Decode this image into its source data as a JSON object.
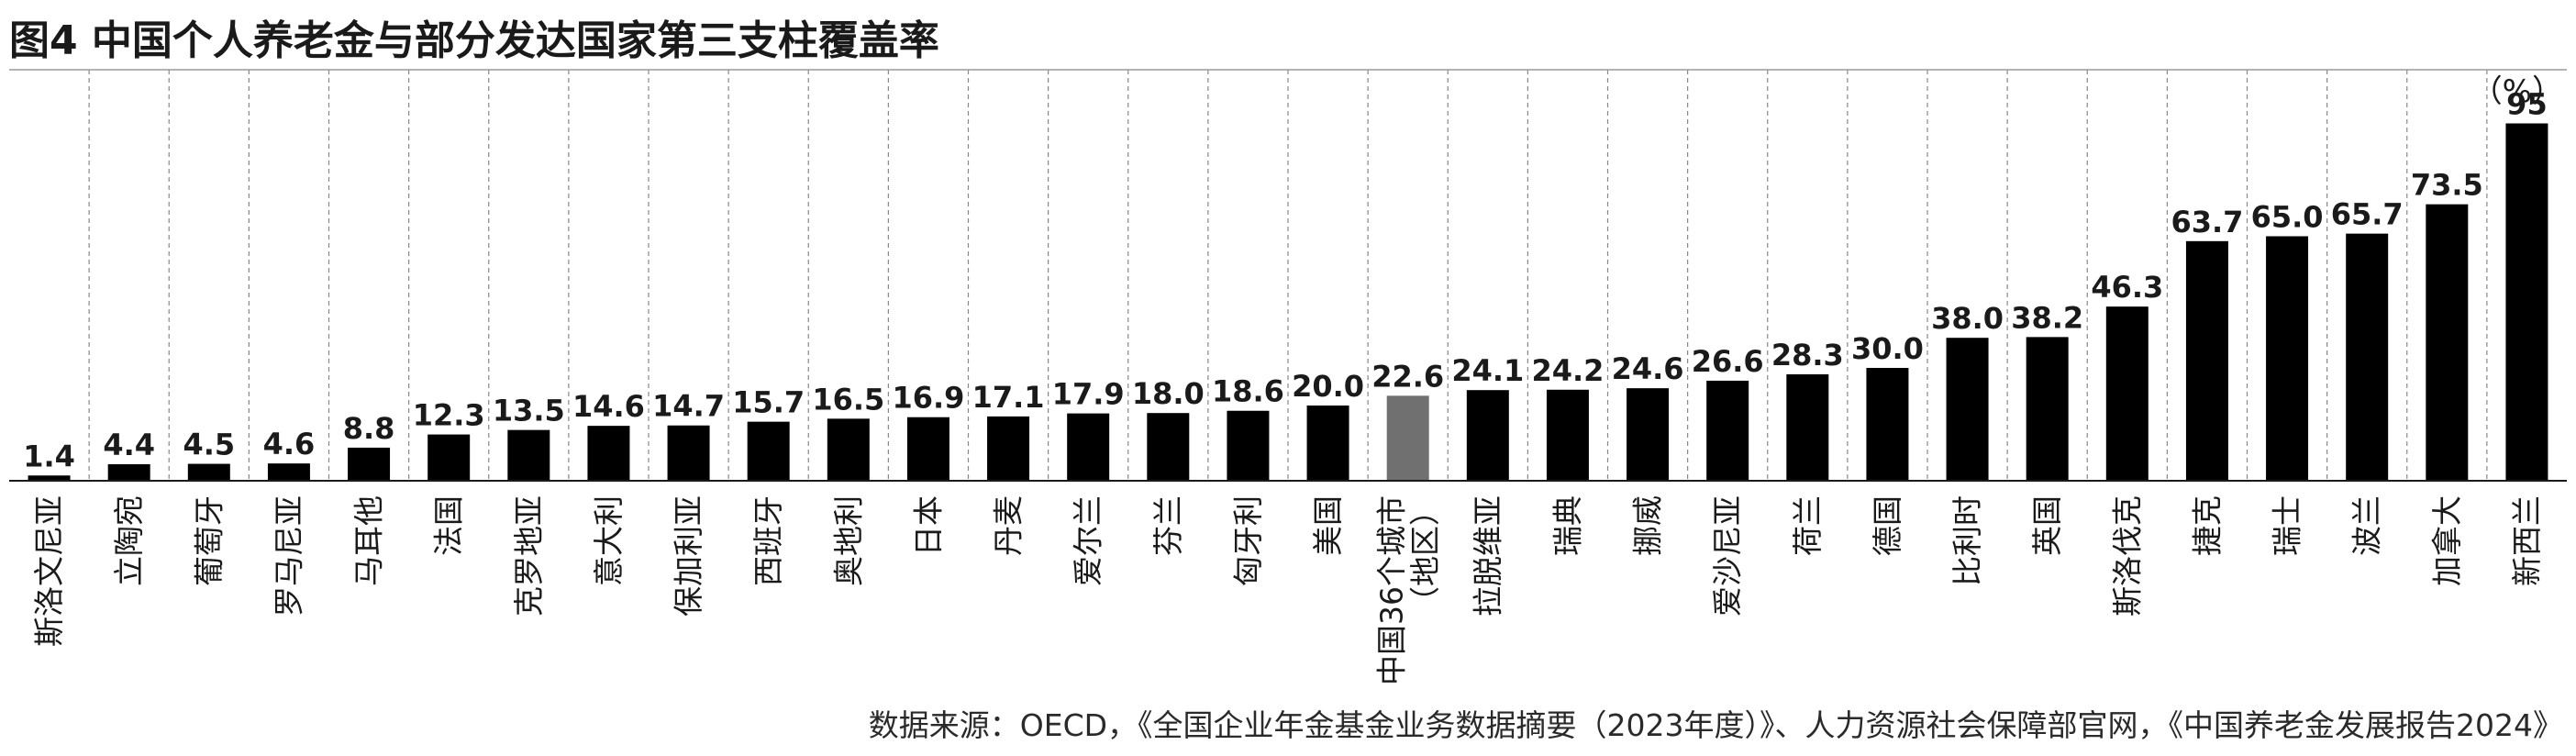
{
  "chart_data": {
    "type": "bar",
    "title": "图4 中国个人养老金与部分发达国家第三支柱覆盖率",
    "unit": "（%）",
    "categories": [
      "斯洛文尼亚",
      "立陶宛",
      "葡萄牙",
      "罗马尼亚",
      "马耳他",
      "法国",
      "克罗地亚",
      "意大利",
      "保加利亚",
      "西班牙",
      "奥地利",
      "日本",
      "丹麦",
      "爱尔兰",
      "芬兰",
      "匈牙利",
      "美国",
      "中国36个城市（地区）",
      "拉脱维亚",
      "瑞典",
      "挪威",
      "爱沙尼亚",
      "荷兰",
      "德国",
      "比利时",
      "英国",
      "斯洛伐克",
      "捷克",
      "瑞士",
      "波兰",
      "加拿大",
      "新西兰"
    ],
    "values": [
      1.4,
      4.4,
      4.5,
      4.6,
      8.8,
      12.3,
      13.5,
      14.6,
      14.7,
      15.7,
      16.5,
      16.9,
      17.1,
      17.9,
      18.0,
      18.6,
      20.0,
      22.6,
      24.1,
      24.2,
      24.6,
      26.6,
      28.3,
      30.0,
      38.0,
      38.2,
      46.3,
      63.7,
      65.0,
      65.7,
      73.5,
      95
    ],
    "value_labels": [
      "1.4",
      "4.4",
      "4.5",
      "4.6",
      "8.8",
      "12.3",
      "13.5",
      "14.6",
      "14.7",
      "15.7",
      "16.5",
      "16.9",
      "17.1",
      "17.9",
      "18.0",
      "18.6",
      "20.0",
      "22.6",
      "24.1",
      "24.2",
      "24.6",
      "26.6",
      "28.3",
      "30.0",
      "38.0",
      "38.2",
      "46.3",
      "63.7",
      "65.0",
      "65.7",
      "73.5",
      "95"
    ],
    "highlight_index": 17,
    "colors": {
      "bar": "#000000",
      "highlight": "#707070",
      "gridline": "#888888"
    },
    "grid": "vertical-dashed",
    "source": "数据来源：OECD，《全国企业年金基金业务数据摘要（2023年度）》、人力资源社会保障部官网，《中国养老金发展报告2024》"
  }
}
